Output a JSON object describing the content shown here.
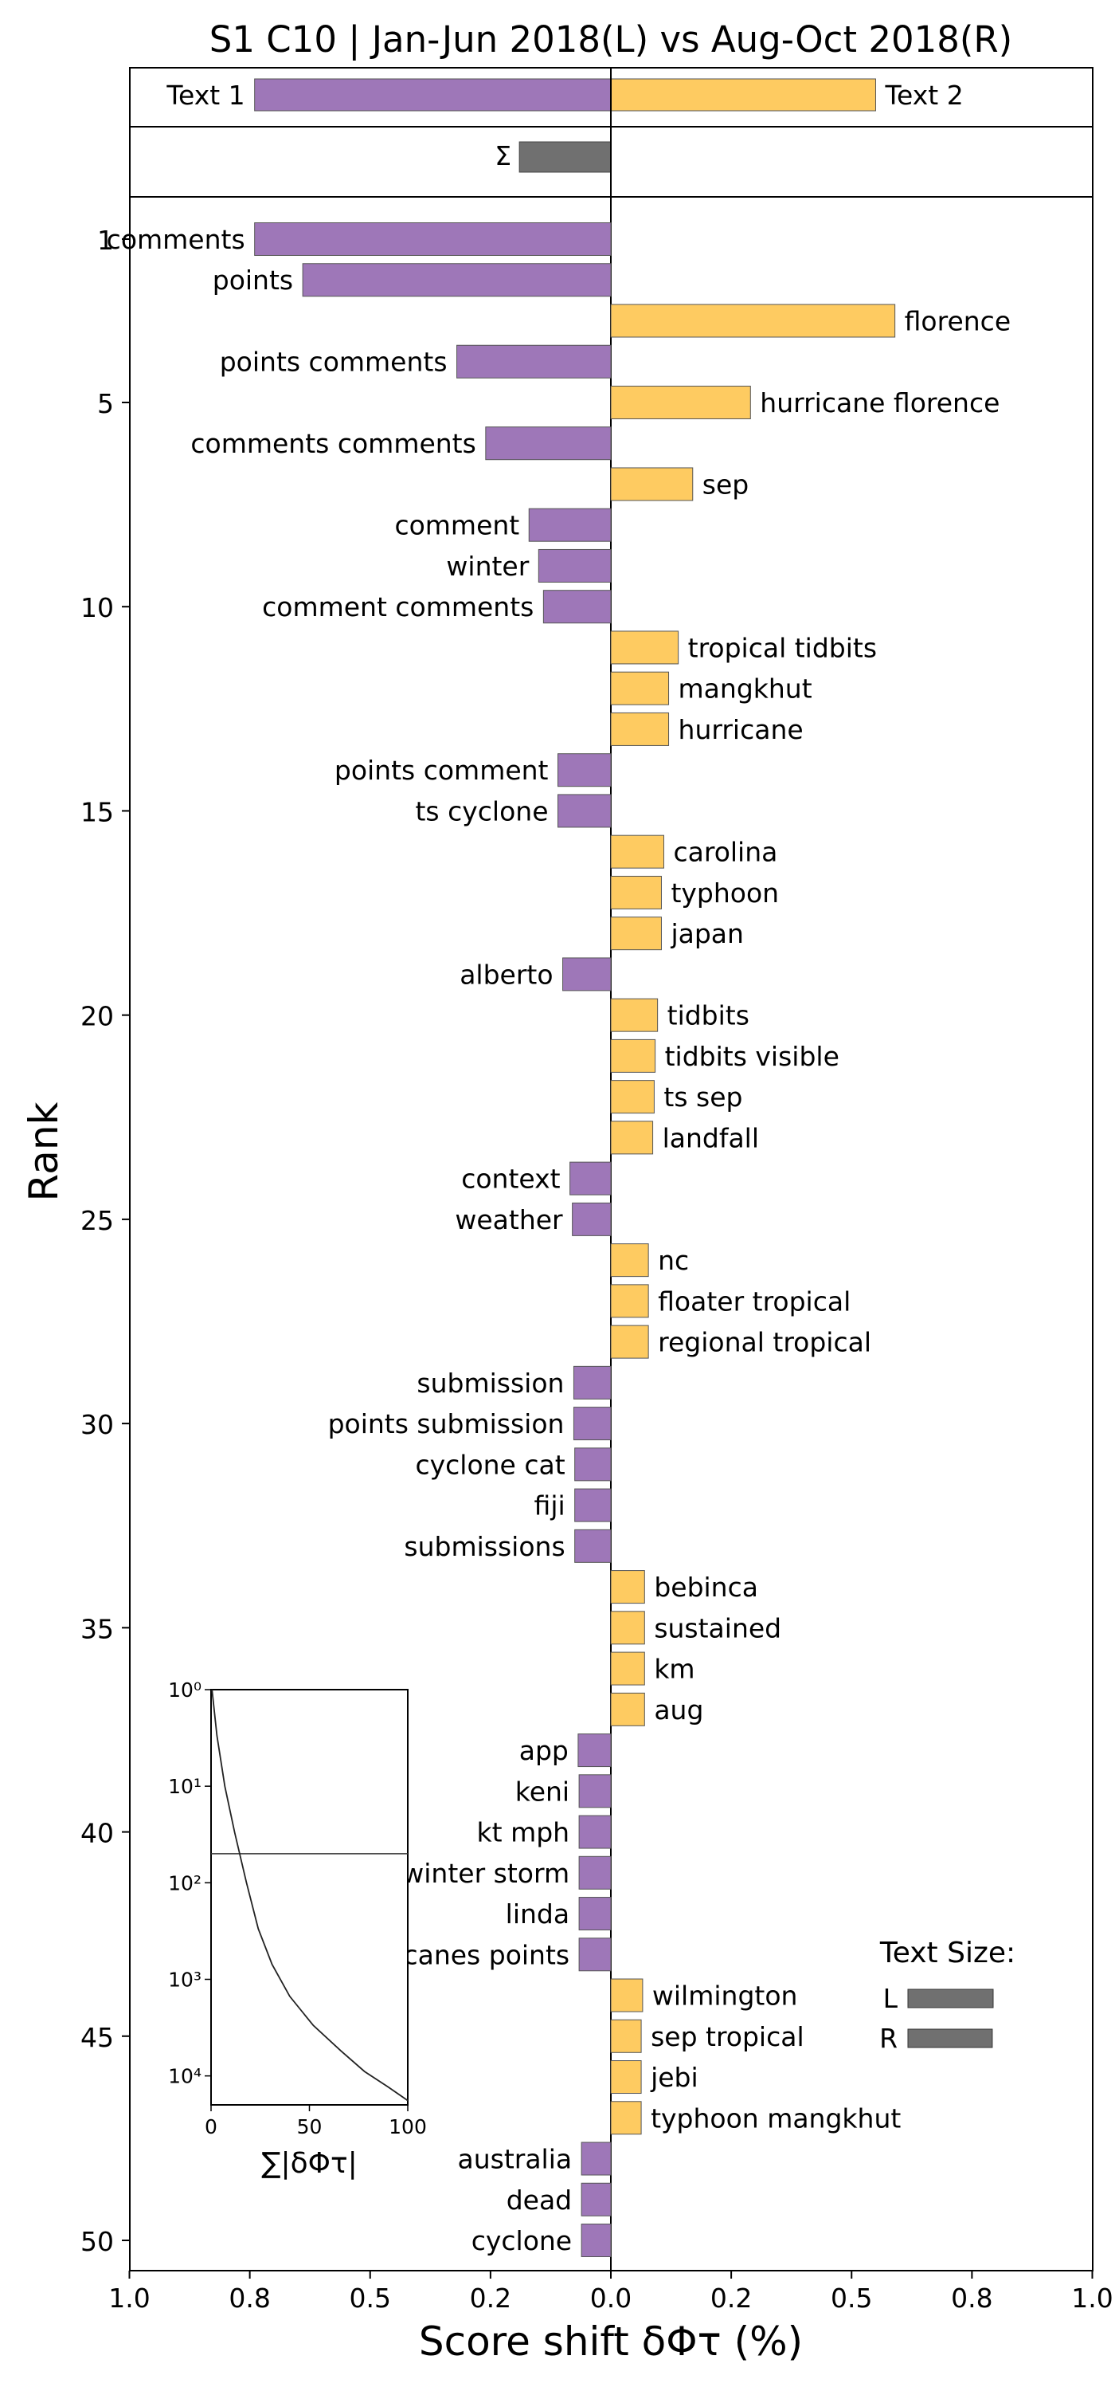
{
  "chart_data": {
    "type": "bar",
    "orientation": "horizontal-diverging",
    "title": "S1 C10 | Jan-Jun 2018(L) vs Aug-Oct 2018(R)",
    "xlabel": "Score shift δΦτ (%)",
    "ylabel": "Rank",
    "xlim": [
      -1.0,
      1.0
    ],
    "x_tick_labels": [
      "1.0",
      "0.8",
      "0.5",
      "0.2",
      "0.0",
      "0.2",
      "0.5",
      "0.8",
      "1.0"
    ],
    "y_tick_labels": [
      "1",
      "5",
      "10",
      "15",
      "20",
      "25",
      "30",
      "35",
      "40",
      "45",
      "50"
    ],
    "colors": {
      "left": "#9e77b8",
      "right": "#fecb61",
      "sum": "#707070",
      "axis": "#000000"
    },
    "summary": {
      "left_label": "Text 1",
      "right_label": "Text 2",
      "left_value": -0.74,
      "right_value": 0.55,
      "sigma_symbol": "Σ",
      "sigma_value": -0.19
    },
    "series": [
      {
        "rank": 1,
        "label": "comments",
        "value": -0.74
      },
      {
        "rank": 2,
        "label": "points",
        "value": -0.64
      },
      {
        "rank": 3,
        "label": "florence",
        "value": 0.59
      },
      {
        "rank": 4,
        "label": "points comments",
        "value": -0.32
      },
      {
        "rank": 5,
        "label": "hurricane florence",
        "value": 0.29
      },
      {
        "rank": 6,
        "label": "comments comments",
        "value": -0.26
      },
      {
        "rank": 7,
        "label": "sep",
        "value": 0.17
      },
      {
        "rank": 8,
        "label": "comment",
        "value": -0.17
      },
      {
        "rank": 9,
        "label": "winter",
        "value": -0.15
      },
      {
        "rank": 10,
        "label": "comment comments",
        "value": -0.14
      },
      {
        "rank": 11,
        "label": "tropical tidbits",
        "value": 0.14
      },
      {
        "rank": 12,
        "label": "mangkhut",
        "value": 0.12
      },
      {
        "rank": 13,
        "label": "hurricane",
        "value": 0.12
      },
      {
        "rank": 14,
        "label": "points comment",
        "value": -0.11
      },
      {
        "rank": 15,
        "label": "ts cyclone",
        "value": -0.11
      },
      {
        "rank": 16,
        "label": "carolina",
        "value": 0.11
      },
      {
        "rank": 17,
        "label": "typhoon",
        "value": 0.105
      },
      {
        "rank": 18,
        "label": "japan",
        "value": 0.105
      },
      {
        "rank": 19,
        "label": "alberto",
        "value": -0.1
      },
      {
        "rank": 20,
        "label": "tidbits",
        "value": 0.097
      },
      {
        "rank": 21,
        "label": "tidbits visible",
        "value": 0.092
      },
      {
        "rank": 22,
        "label": "ts sep",
        "value": 0.09
      },
      {
        "rank": 23,
        "label": "landfall",
        "value": 0.087
      },
      {
        "rank": 24,
        "label": "context",
        "value": -0.085
      },
      {
        "rank": 25,
        "label": "weather",
        "value": -0.08
      },
      {
        "rank": 26,
        "label": "nc",
        "value": 0.078
      },
      {
        "rank": 27,
        "label": "floater tropical",
        "value": 0.078
      },
      {
        "rank": 28,
        "label": "regional tropical",
        "value": 0.078
      },
      {
        "rank": 29,
        "label": "submission",
        "value": -0.077
      },
      {
        "rank": 30,
        "label": "points submission",
        "value": -0.077
      },
      {
        "rank": 31,
        "label": "cyclone cat",
        "value": -0.075
      },
      {
        "rank": 32,
        "label": "fiji",
        "value": -0.075
      },
      {
        "rank": 33,
        "label": "submissions",
        "value": -0.075
      },
      {
        "rank": 34,
        "label": "bebinca",
        "value": 0.07
      },
      {
        "rank": 35,
        "label": "sustained",
        "value": 0.07
      },
      {
        "rank": 36,
        "label": "km",
        "value": 0.07
      },
      {
        "rank": 37,
        "label": "aug",
        "value": 0.07
      },
      {
        "rank": 38,
        "label": "app",
        "value": -0.068
      },
      {
        "rank": 39,
        "label": "keni",
        "value": -0.066
      },
      {
        "rank": 40,
        "label": "kt mph",
        "value": -0.066
      },
      {
        "rank": 41,
        "label": "winter storm",
        "value": -0.066
      },
      {
        "rank": 42,
        "label": "linda",
        "value": -0.066
      },
      {
        "rank": 43,
        "label": "hurricanes points",
        "value": -0.066
      },
      {
        "rank": 44,
        "label": "wilmington",
        "value": 0.066
      },
      {
        "rank": 45,
        "label": "sep tropical",
        "value": 0.063
      },
      {
        "rank": 46,
        "label": "jebi",
        "value": 0.063
      },
      {
        "rank": 47,
        "label": "typhoon mangkhut",
        "value": 0.063
      },
      {
        "rank": 48,
        "label": "australia",
        "value": -0.061
      },
      {
        "rank": 49,
        "label": "dead",
        "value": -0.061
      },
      {
        "rank": 50,
        "label": "cyclone",
        "value": -0.061
      }
    ],
    "inset": {
      "type": "line",
      "xlabel": "∑|δΦτ|",
      "x_tick_labels": [
        "0",
        "50",
        "100"
      ],
      "y_tick_labels": [
        "10⁰",
        "10¹",
        "10²",
        "10³",
        "10⁴"
      ],
      "xlim": [
        0,
        100
      ],
      "y_scale": "log",
      "reference_rank": 50,
      "curve": [
        {
          "cum_percent": 0.5,
          "rank": 1
        },
        {
          "cum_percent": 3,
          "rank": 3
        },
        {
          "cum_percent": 7,
          "rank": 10
        },
        {
          "cum_percent": 12,
          "rank": 30
        },
        {
          "cum_percent": 18,
          "rank": 100
        },
        {
          "cum_percent": 24,
          "rank": 300
        },
        {
          "cum_percent": 31,
          "rank": 700
        },
        {
          "cum_percent": 40,
          "rank": 1500
        },
        {
          "cum_percent": 52,
          "rank": 3000
        },
        {
          "cum_percent": 66,
          "rank": 5500
        },
        {
          "cum_percent": 78,
          "rank": 9000
        },
        {
          "cum_percent": 90,
          "rank": 13000
        },
        {
          "cum_percent": 100,
          "rank": 18000
        }
      ]
    },
    "text_size_legend": {
      "title": "Text Size:",
      "items": [
        {
          "label": "L",
          "relative_size": 1.0
        },
        {
          "label": "R",
          "relative_size": 0.99
        }
      ]
    }
  }
}
